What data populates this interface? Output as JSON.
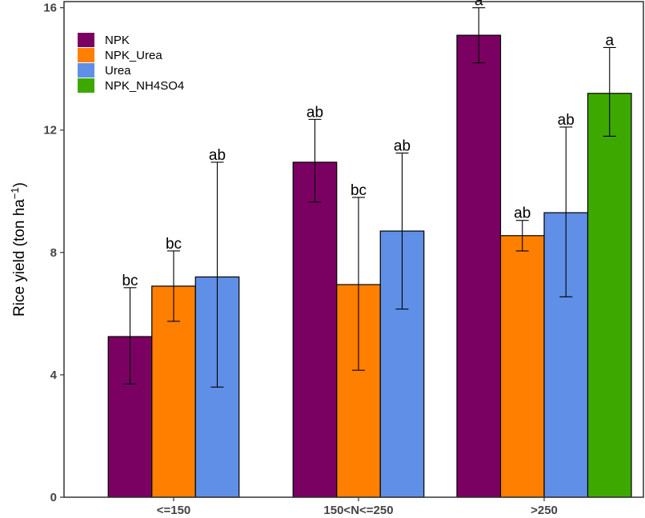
{
  "chart_data": {
    "type": "bar",
    "title": "",
    "xlabel": "",
    "ylabel": {
      "main": "Rice yield (ton ha",
      "superscript": "−1",
      "close": ")"
    },
    "ylim": [
      0,
      16.2
    ],
    "yticks": [
      "0",
      "4",
      "8",
      "12",
      "16"
    ],
    "grid": false,
    "legend_position": "top-left",
    "categories": [
      "<=150",
      "150<N<=250",
      ">250"
    ],
    "series": [
      {
        "name": "NPK",
        "color": "#7a0062",
        "values": [
          5.25,
          10.95,
          15.1
        ],
        "err_low": [
          3.7,
          9.65,
          14.2
        ],
        "err_high": [
          6.85,
          12.35,
          16.0
        ],
        "labels": [
          "bc",
          "ab",
          "a"
        ]
      },
      {
        "name": "NPK_Urea",
        "color": "#ff7f00",
        "values": [
          6.9,
          6.95,
          8.55
        ],
        "err_low": [
          5.75,
          4.15,
          8.05
        ],
        "err_high": [
          8.05,
          9.8,
          9.05
        ],
        "labels": [
          "bc",
          "bc",
          "ab"
        ]
      },
      {
        "name": "Urea",
        "color": "#5f8fe6",
        "values": [
          7.2,
          8.7,
          9.3
        ],
        "err_low": [
          3.6,
          6.15,
          6.55
        ],
        "err_high": [
          10.95,
          11.25,
          12.1
        ],
        "labels": [
          "ab",
          "ab",
          "ab"
        ]
      },
      {
        "name": "NPK_NH4SO4",
        "color": "#3da900",
        "values": [
          null,
          null,
          13.2
        ],
        "err_low": [
          null,
          null,
          11.8
        ],
        "err_high": [
          null,
          null,
          14.7
        ],
        "labels": [
          null,
          null,
          "a"
        ]
      }
    ]
  }
}
